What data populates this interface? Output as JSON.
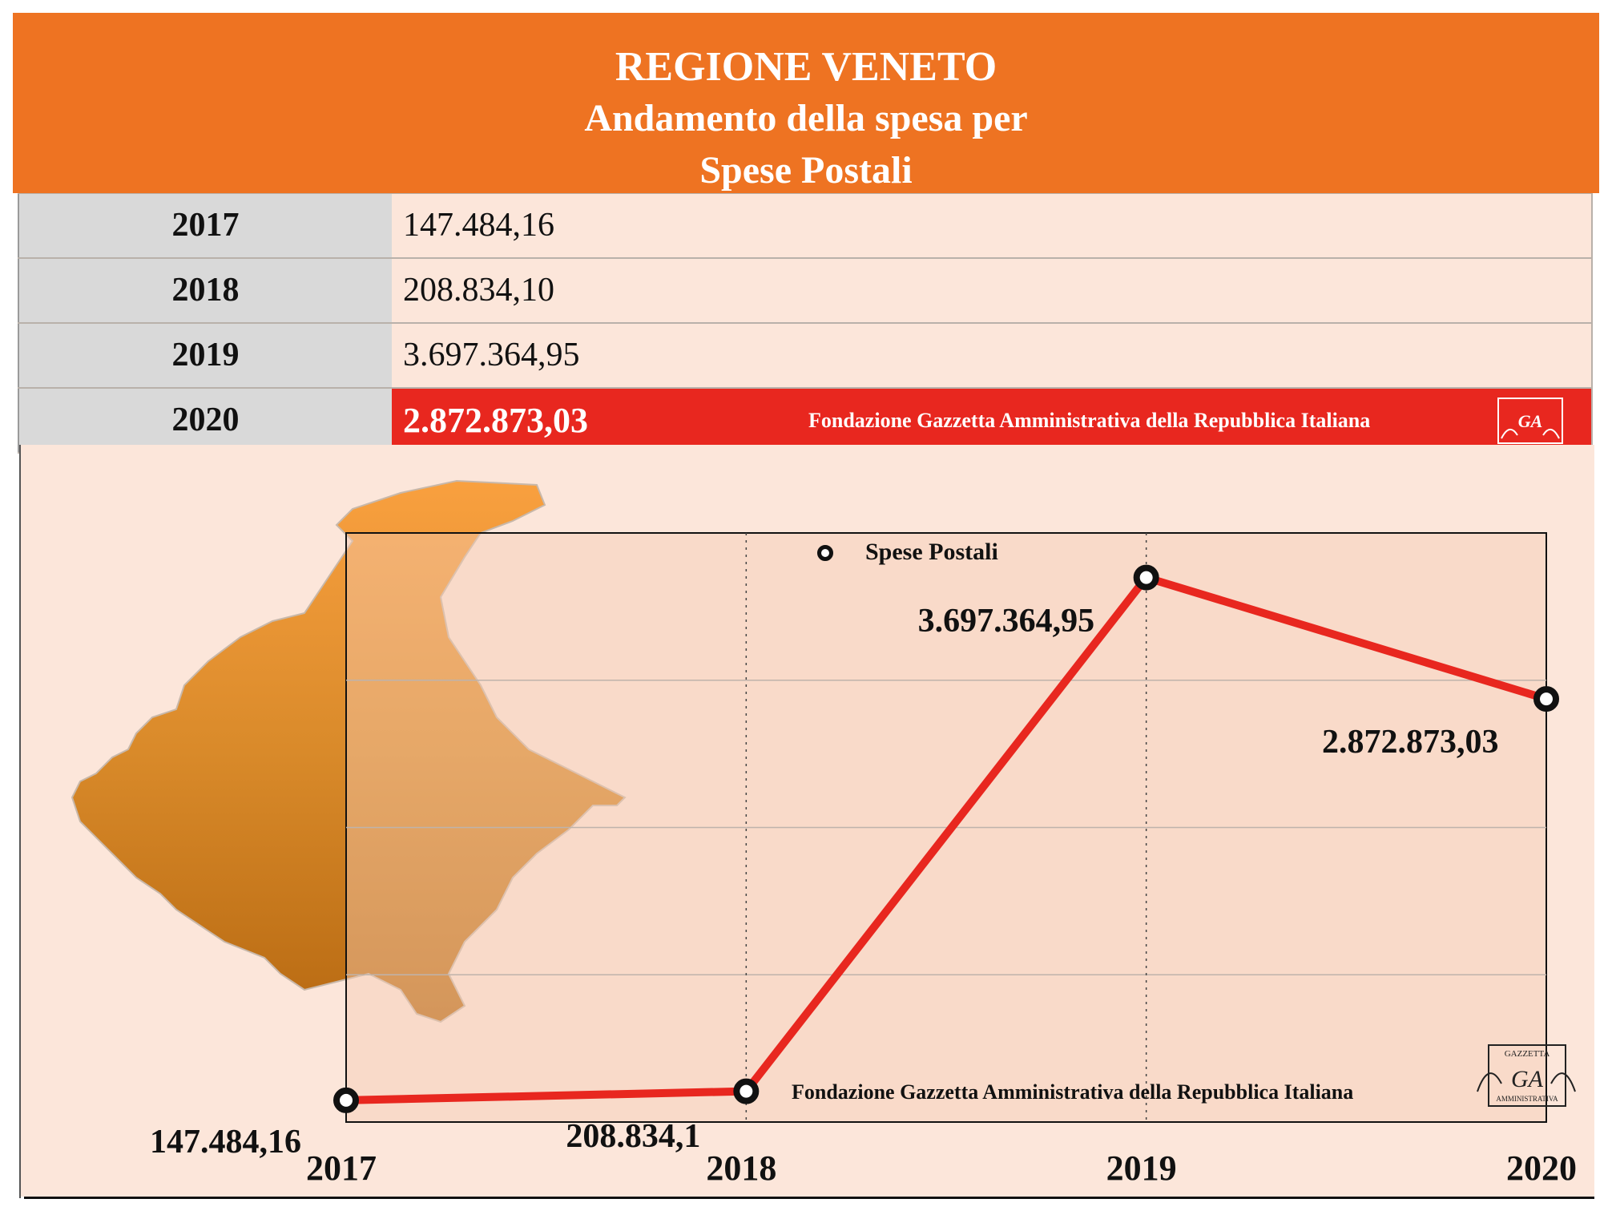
{
  "header": {
    "line1": "REGIONE VENETO",
    "line2": "Andamento della spesa per",
    "line3": "Spese Postali"
  },
  "table": {
    "rows": [
      {
        "year": "2017",
        "value": "147.484,16"
      },
      {
        "year": "2018",
        "value": "208.834,10"
      },
      {
        "year": "2019",
        "value": "3.697.364,95"
      },
      {
        "year": "2020",
        "value": "2.872.873,03"
      }
    ],
    "footer_text": "Fondazione Gazzetta Amministrativa della Repubblica Italiana"
  },
  "logo": {
    "text": "GA",
    "top_text": "GAZZETTA",
    "bottom_text": "AMMINISTRATIVA"
  },
  "colors": {
    "header": "#ee7322",
    "highlight": "#e8271f",
    "line": "#e8271f",
    "panel": "#fce6da",
    "map": "#d9861e"
  },
  "chart_data": {
    "type": "line",
    "categories": [
      "2017",
      "2018",
      "2019",
      "2020"
    ],
    "series": [
      {
        "name": "Spese Postali",
        "values": [
          147484.16,
          208834.1,
          3697364.95,
          2872873.03
        ]
      }
    ],
    "data_labels": [
      "147.484,16",
      "208.834,1",
      "3.697.364,95",
      "2.872.873,03"
    ],
    "ylim": [
      0,
      4000000
    ],
    "grid": "on",
    "legend": "top-center",
    "footer_text": "Fondazione Gazzetta Amministrativa della Repubblica Italiana"
  }
}
